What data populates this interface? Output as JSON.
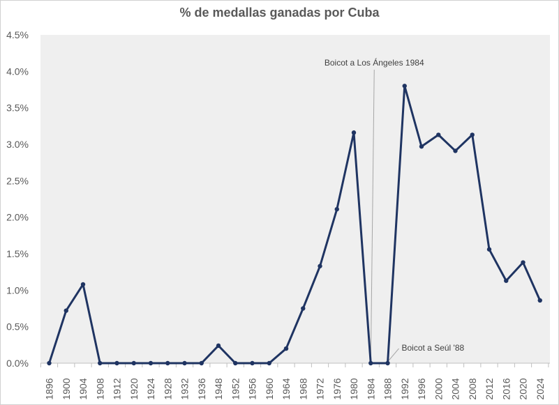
{
  "chart_data": {
    "type": "line",
    "title": "% de medallas ganadas por Cuba",
    "xlabel": "",
    "ylabel": "",
    "ylim": [
      0,
      4.5
    ],
    "y_ticks": [
      "0.0%",
      "0.5%",
      "1.0%",
      "1.5%",
      "2.0%",
      "2.5%",
      "3.0%",
      "3.5%",
      "4.0%",
      "4.5%"
    ],
    "grid": false,
    "legend": "none",
    "categories": [
      "1896",
      "1900",
      "1904",
      "1908",
      "1912",
      "1920",
      "1924",
      "1928",
      "1932",
      "1936",
      "1948",
      "1952",
      "1956",
      "1960",
      "1964",
      "1968",
      "1972",
      "1976",
      "1980",
      "1984",
      "1988",
      "1992",
      "1996",
      "2000",
      "2004",
      "2008",
      "2012",
      "2016",
      "2020",
      "2024"
    ],
    "series": [
      {
        "values": [
          0.0,
          0.72,
          1.08,
          0.0,
          0.0,
          0.0,
          0.0,
          0.0,
          0.0,
          0.0,
          0.24,
          0.0,
          0.0,
          0.0,
          0.2,
          0.75,
          1.33,
          2.11,
          3.16,
          0.0,
          0.0,
          3.8,
          2.97,
          3.13,
          2.91,
          3.13,
          1.56,
          1.13,
          1.38,
          0.86
        ],
        "color": "#1f3462"
      }
    ],
    "annotations": [
      {
        "text": "Boicot a Los Ángeles 1984",
        "category": "1984"
      },
      {
        "text": "Boicot a Seúl '88",
        "category": "1988"
      }
    ],
    "plot_background": "#efefef",
    "annotation_line_color": "#a6a6a6"
  }
}
